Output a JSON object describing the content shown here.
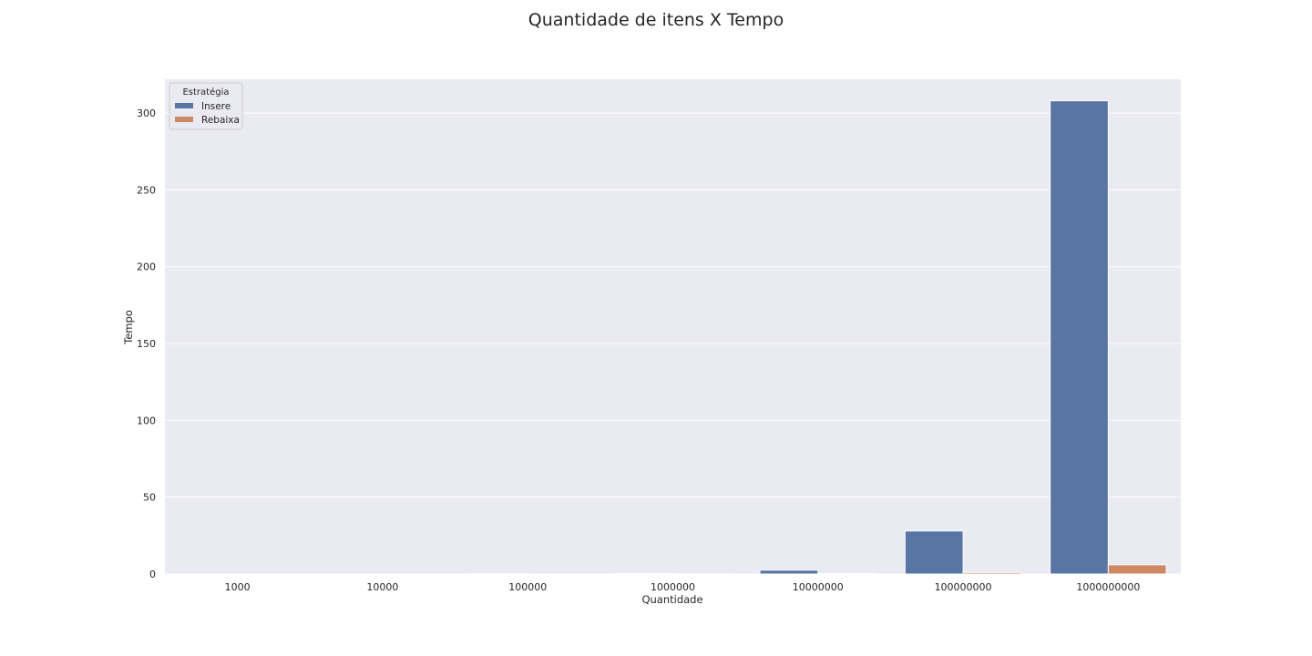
{
  "chart_data": {
    "type": "bar",
    "title": "Quantidade de itens X Tempo",
    "xlabel": "Quantidade",
    "ylabel": "Tempo",
    "categories": [
      "1000",
      "10000",
      "100000",
      "1000000",
      "10000000",
      "100000000",
      "1000000000"
    ],
    "series": [
      {
        "name": "Insere",
        "color": "#5875a4",
        "values": [
          0.001,
          0.01,
          0.1,
          0.3,
          2.5,
          28,
          308
        ]
      },
      {
        "name": "Rebaixa",
        "color": "#cc8963",
        "values": [
          0.0,
          0.0,
          0.01,
          0.05,
          0.3,
          1.0,
          6.0
        ]
      }
    ],
    "ylim": [
      0,
      322
    ],
    "yticks": [
      0,
      50,
      100,
      150,
      200,
      250,
      300
    ],
    "grid": true,
    "legend": {
      "title": "Estratégia",
      "position": "top-left"
    },
    "background": "#eaeaf2"
  }
}
